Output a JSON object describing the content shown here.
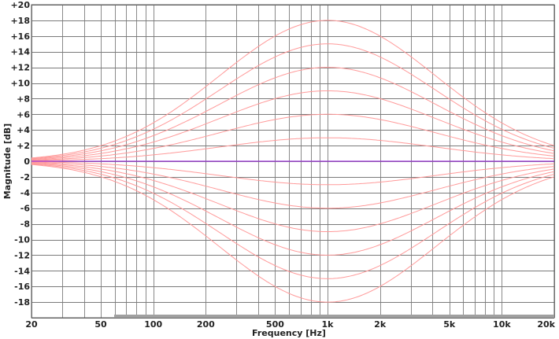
{
  "chart_data": {
    "type": "line",
    "xlabel": "Frequency [Hz]",
    "ylabel": "Magnitude [dB]",
    "x_scale": "log",
    "xlim": [
      20,
      20000
    ],
    "ylim": [
      -20,
      20
    ],
    "grid": true,
    "x_ticks": [
      "20",
      "50",
      "100",
      "200",
      "500",
      "1k",
      "2k",
      "5k",
      "10k",
      "20k"
    ],
    "x_tick_values": [
      20,
      50,
      100,
      200,
      500,
      1000,
      2000,
      5000,
      10000,
      20000
    ],
    "y_ticks": [
      "+20",
      "+18",
      "+16",
      "+14",
      "+12",
      "+10",
      "+8",
      "+6",
      "+4",
      "+2",
      "0",
      "-2",
      "-4",
      "-6",
      "-8",
      "-10",
      "-12",
      "-14",
      "-16",
      "-18"
    ],
    "y_tick_values": [
      20,
      18,
      16,
      14,
      12,
      10,
      8,
      6,
      4,
      2,
      0,
      -2,
      -4,
      -6,
      -8,
      -10,
      -12,
      -14,
      -16,
      -18
    ],
    "center_frequency": 1000,
    "series": [
      {
        "gain_db": 18,
        "color": "#ff8c8c"
      },
      {
        "gain_db": 15,
        "color": "#ff9c9c"
      },
      {
        "gain_db": 12,
        "color": "#ff8c8c"
      },
      {
        "gain_db": 9,
        "color": "#ff9c9c"
      },
      {
        "gain_db": 6,
        "color": "#ff8c8c"
      },
      {
        "gain_db": 3,
        "color": "#ff9c9c"
      },
      {
        "gain_db": 0,
        "color": "#9b30d8"
      },
      {
        "gain_db": -3,
        "color": "#ff9c9c"
      },
      {
        "gain_db": -6,
        "color": "#ff8c8c"
      },
      {
        "gain_db": -9,
        "color": "#ff9c9c"
      },
      {
        "gain_db": -12,
        "color": "#ff8c8c"
      },
      {
        "gain_db": -15,
        "color": "#ff9c9c"
      },
      {
        "gain_db": -18,
        "color": "#ff8c8c"
      }
    ]
  }
}
